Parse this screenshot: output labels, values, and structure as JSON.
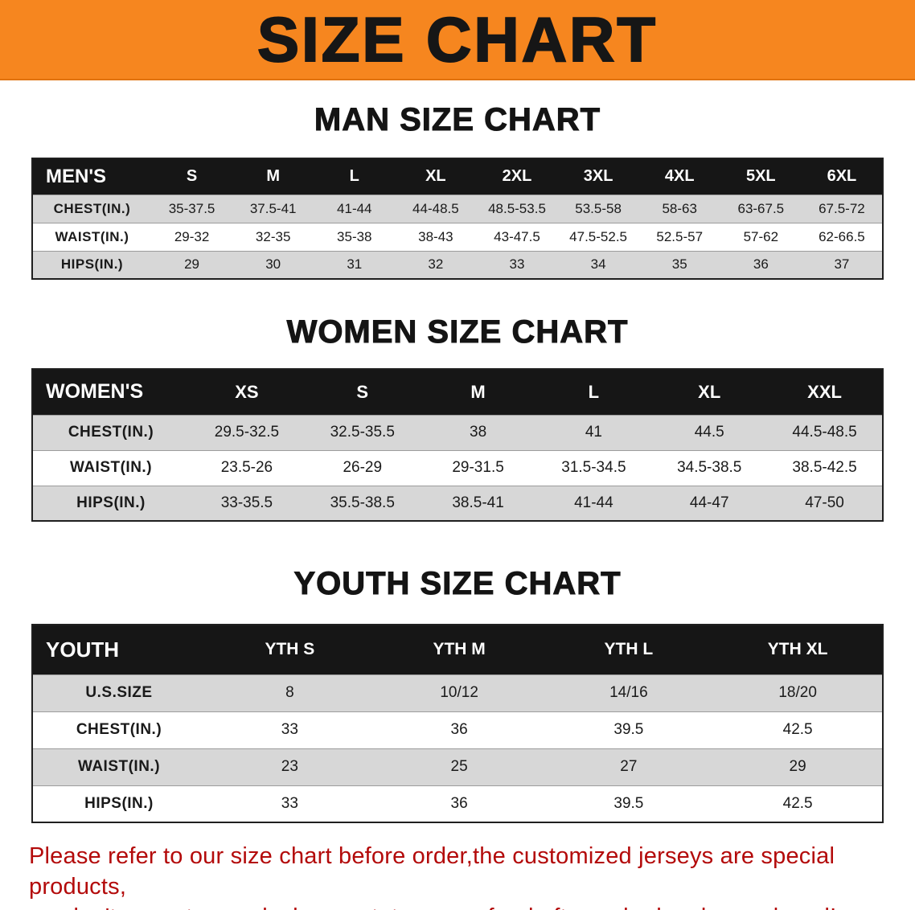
{
  "banner": {
    "title": "SIZE CHART"
  },
  "colors": {
    "banner_bg": "#F6861F",
    "banner_border": "#E0720F",
    "title_text": "#161616",
    "header_bg": "#161616",
    "row_alt": "#D7D7D7",
    "row_line": "#9C9C9C",
    "table_border": "#1F1F1F",
    "notice_text": "#B30A0A"
  },
  "chart_data": [
    {
      "type": "table",
      "title": "MAN SIZE CHART",
      "corner": "MEN'S",
      "columns": [
        "S",
        "M",
        "L",
        "XL",
        "2XL",
        "3XL",
        "4XL",
        "5XL",
        "6XL"
      ],
      "rows": [
        {
          "label": "CHEST(IN.)",
          "values": [
            "35-37.5",
            "37.5-41",
            "41-44",
            "44-48.5",
            "48.5-53.5",
            "53.5-58",
            "58-63",
            "63-67.5",
            "67.5-72"
          ]
        },
        {
          "label": "WAIST(IN.)",
          "values": [
            "29-32",
            "32-35",
            "35-38",
            "38-43",
            "43-47.5",
            "47.5-52.5",
            "52.5-57",
            "57-62",
            "62-66.5"
          ]
        },
        {
          "label": "HIPS(IN.)",
          "values": [
            "29",
            "30",
            "31",
            "32",
            "33",
            "34",
            "35",
            "36",
            "37"
          ]
        }
      ]
    },
    {
      "type": "table",
      "title": "WOMEN SIZE CHART",
      "corner": "WOMEN'S",
      "columns": [
        "XS",
        "S",
        "M",
        "L",
        "XL",
        "XXL"
      ],
      "rows": [
        {
          "label": "CHEST(IN.)",
          "values": [
            "29.5-32.5",
            "32.5-35.5",
            "38",
            "41",
            "44.5",
            "44.5-48.5"
          ]
        },
        {
          "label": "WAIST(IN.)",
          "values": [
            "23.5-26",
            "26-29",
            "29-31.5",
            "31.5-34.5",
            "34.5-38.5",
            "38.5-42.5"
          ]
        },
        {
          "label": "HIPS(IN.)",
          "values": [
            "33-35.5",
            "35.5-38.5",
            "38.5-41",
            "41-44",
            "44-47",
            "47-50"
          ]
        }
      ]
    },
    {
      "type": "table",
      "title": "YOUTH SIZE CHART",
      "corner": "YOUTH",
      "columns": [
        "YTH S",
        "YTH M",
        "YTH L",
        "YTH XL"
      ],
      "rows": [
        {
          "label": "U.S.SIZE",
          "values": [
            "8",
            "10/12",
            "14/16",
            "18/20"
          ]
        },
        {
          "label": "CHEST(IN.)",
          "values": [
            "33",
            "36",
            "39.5",
            "42.5"
          ]
        },
        {
          "label": "WAIST(IN.)",
          "values": [
            "23",
            "25",
            "27",
            "29"
          ]
        },
        {
          "label": "HIPS(IN.)",
          "values": [
            "33",
            "36",
            "39.5",
            "42.5"
          ]
        }
      ]
    }
  ],
  "footer": {
    "lines": [
      "Please refer to our size chart before order,the customized jerseys are special products,",
      "we don't accept cancel, change, teturn or refund after order has been placed!"
    ]
  }
}
